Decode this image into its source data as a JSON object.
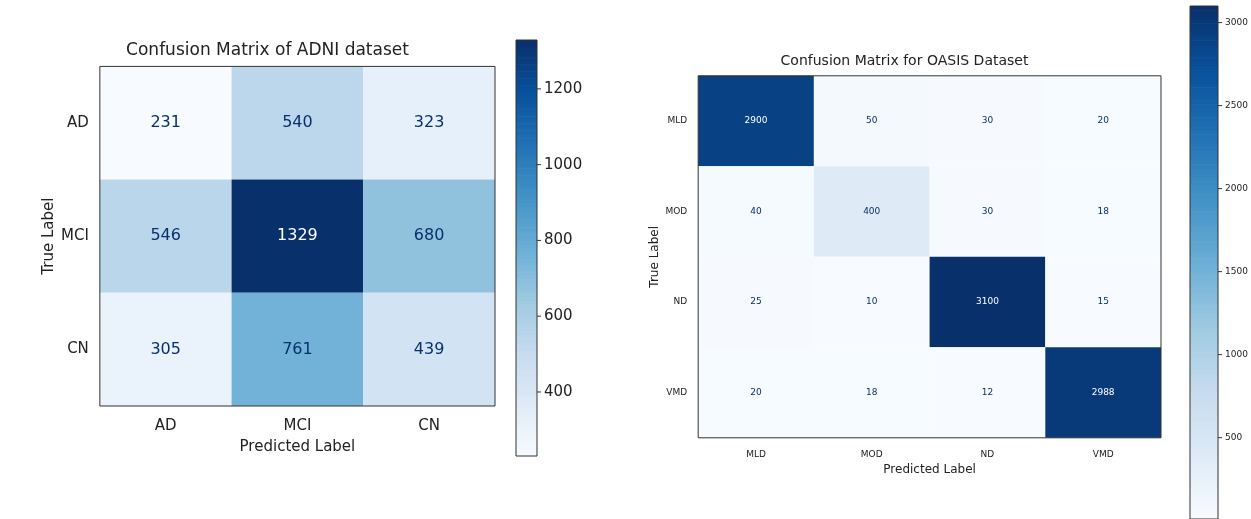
{
  "chart_data": [
    {
      "type": "heatmap",
      "title": "Confusion Matrix of ADNI dataset",
      "xlabel": "Predicted Label",
      "ylabel": "True Label",
      "categories": [
        "AD",
        "MCI",
        "CN"
      ],
      "y_categories": [
        "AD",
        "MCI",
        "CN"
      ],
      "cells": [
        [
          231,
          540,
          323
        ],
        [
          546,
          1329,
          680
        ],
        [
          305,
          761,
          439
        ]
      ],
      "data_labels": true,
      "clim": [
        231,
        1329
      ],
      "cticks": [
        400,
        600,
        800,
        1000,
        1200
      ]
    },
    {
      "type": "heatmap",
      "title": "Confusion Matrix for OASIS Dataset",
      "xlabel": "Predicted Label",
      "ylabel": "True Label",
      "categories": [
        "MLD",
        "MOD",
        "ND",
        "VMD"
      ],
      "y_categories": [
        "MLD",
        "MOD",
        "ND",
        "VMD"
      ],
      "cells": [
        [
          2900,
          50,
          30,
          20
        ],
        [
          40,
          400,
          30,
          18
        ],
        [
          25,
          10,
          3100,
          15
        ],
        [
          20,
          18,
          12,
          2988
        ]
      ],
      "data_labels": true,
      "clim": [
        10,
        3100
      ],
      "cticks": [
        500,
        1000,
        1500,
        2000,
        2500,
        3000
      ]
    }
  ]
}
